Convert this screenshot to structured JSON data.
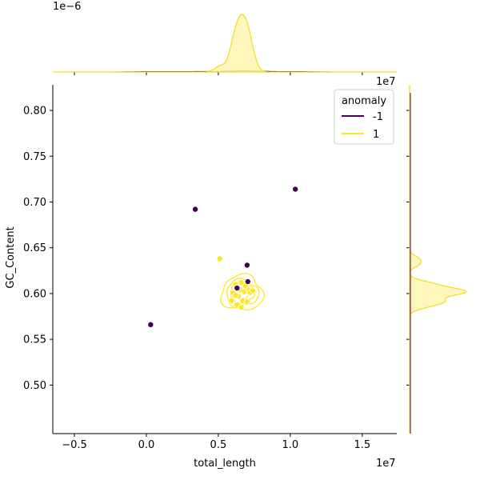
{
  "chart_data": {
    "type": "scatter",
    "subtype": "jointplot",
    "xlabel": "total_length",
    "ylabel": "GC_Content",
    "x_offset_label": "1e7",
    "top_marginal_offset_label": "1e−6",
    "right_marginal_offset_label": "1e7",
    "xlim": [
      -0.65,
      1.74
    ],
    "ylim": [
      0.447,
      0.828
    ],
    "xticks": [
      -0.5,
      0.0,
      0.5,
      1.0,
      1.5
    ],
    "xtick_labels": [
      "−0.5",
      "0.0",
      "0.5",
      "1.0",
      "1.5"
    ],
    "yticks": [
      0.5,
      0.55,
      0.6,
      0.65,
      0.7,
      0.75,
      0.8
    ],
    "ytick_labels": [
      "0.50",
      "0.55",
      "0.60",
      "0.65",
      "0.70",
      "0.75",
      "0.80"
    ],
    "legend": {
      "title": "anomaly",
      "location": "upper right",
      "entries": [
        {
          "label": "-1",
          "color": "#440154"
        },
        {
          "label": "1",
          "color": "#fde725"
        }
      ]
    },
    "series": [
      {
        "name": "-1",
        "color": "#440154",
        "points": [
          [
            0.03,
            0.566
          ],
          [
            0.34,
            0.692
          ],
          [
            1.035,
            0.714
          ],
          [
            0.7,
            0.631
          ],
          [
            0.705,
            0.613
          ],
          [
            0.63,
            0.606
          ]
        ]
      },
      {
        "name": "1",
        "color": "#fde725",
        "points": [
          [
            0.51,
            0.638
          ],
          [
            0.7,
            0.632
          ],
          [
            0.59,
            0.592
          ],
          [
            0.6,
            0.601
          ],
          [
            0.62,
            0.61
          ],
          [
            0.63,
            0.588
          ],
          [
            0.64,
            0.597
          ],
          [
            0.65,
            0.604
          ],
          [
            0.66,
            0.612
          ],
          [
            0.67,
            0.592
          ],
          [
            0.68,
            0.602
          ],
          [
            0.69,
            0.608
          ],
          [
            0.7,
            0.591
          ],
          [
            0.71,
            0.604
          ],
          [
            0.72,
            0.601
          ],
          [
            0.74,
            0.603
          ],
          [
            0.66,
            0.585
          ],
          [
            0.62,
            0.598
          ]
        ]
      }
    ],
    "colors": {
      "negative": "#440154",
      "positive": "#fde725",
      "kde_fill": "#fef4b1",
      "kde_line": "#f2dc1a"
    }
  }
}
